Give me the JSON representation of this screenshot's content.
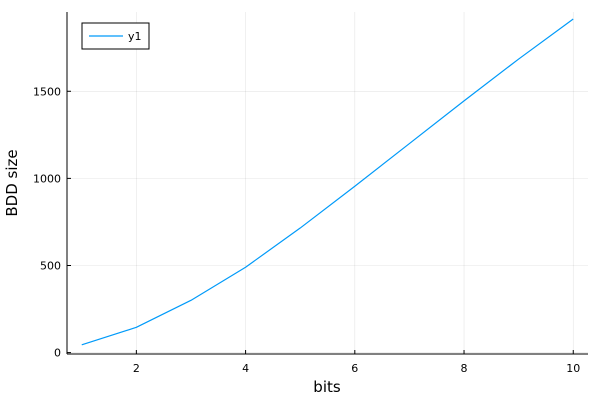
{
  "chart_data": {
    "type": "line",
    "title": "",
    "xlabel": "bits",
    "ylabel": "BDD size",
    "xlim": [
      0.73,
      10.27
    ],
    "ylim": [
      -8,
      1955
    ],
    "xticks": [
      2,
      4,
      6,
      8,
      10
    ],
    "yticks": [
      0,
      500,
      1000,
      1500
    ],
    "grid": true,
    "legend_position": "top-left",
    "series": [
      {
        "name": "y1",
        "color": "#009af9",
        "x": [
          1,
          2,
          3,
          4,
          5,
          6,
          7,
          8,
          9,
          10
        ],
        "y": [
          45,
          145,
          300,
          490,
          715,
          955,
          1200,
          1445,
          1685,
          1915
        ]
      }
    ]
  }
}
